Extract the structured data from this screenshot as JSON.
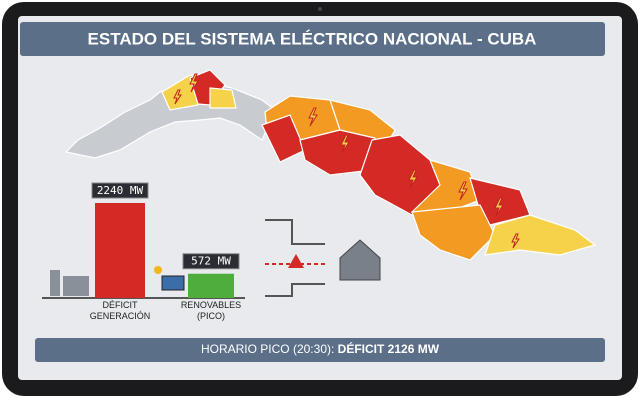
{
  "chart_data": {
    "type": "bar",
    "title": "ESTADO DEL SISTEMA ELÉCTRICO NACIONAL - CUBA",
    "categories": [
      "DÉFICIT GENERACIÓN",
      "RENOVABLES (PICO)"
    ],
    "values": [
      2240,
      572
    ],
    "value_labels": [
      "2240 MW",
      "572 MW"
    ],
    "colors": [
      "#d32a25",
      "#4fae3b"
    ]
  },
  "footer": {
    "label": "HORARIO PICO (20:30):",
    "value": "DÉFICIT 2126 MW"
  }
}
